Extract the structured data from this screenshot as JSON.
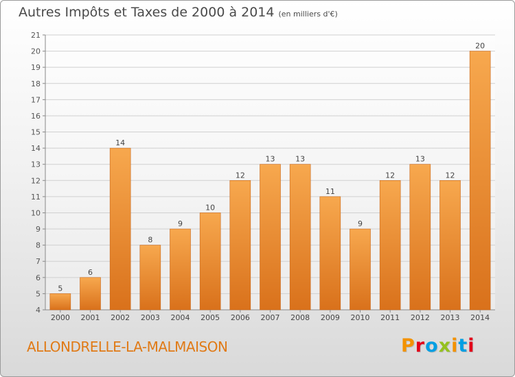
{
  "header": {
    "title": "Autres Impôts et Taxes de 2000 à 2014",
    "subtitle": "(en milliers d'€)"
  },
  "footer": {
    "town": "ALLONDRELLE-LA-MALMAISON",
    "logo": "Proxiti"
  },
  "colors": {
    "bar_top": "#f7a84e",
    "bar_bottom": "#d9711b",
    "town_text": "#e07a16",
    "logo_letters": [
      "#f39200",
      "#e2001a",
      "#009fe3",
      "#95c11f",
      "#f39200",
      "#009fe3",
      "#e2001a"
    ]
  },
  "chart_data": {
    "type": "bar",
    "title": "Autres Impôts et Taxes de 2000 à 2014",
    "subtitle": "(en milliers d'€)",
    "categories": [
      "2000",
      "2001",
      "2002",
      "2003",
      "2004",
      "2005",
      "2006",
      "2007",
      "2008",
      "2009",
      "2010",
      "2011",
      "2012",
      "2013",
      "2014"
    ],
    "values": [
      5,
      6,
      14,
      8,
      9,
      10,
      12,
      13,
      13,
      11,
      9,
      12,
      13,
      12,
      20
    ],
    "ylim": [
      4,
      21
    ],
    "yticks": [
      4,
      5,
      6,
      7,
      8,
      9,
      10,
      11,
      12,
      13,
      14,
      15,
      16,
      17,
      18,
      19,
      20,
      21
    ],
    "grid": true,
    "data_labels": true
  }
}
